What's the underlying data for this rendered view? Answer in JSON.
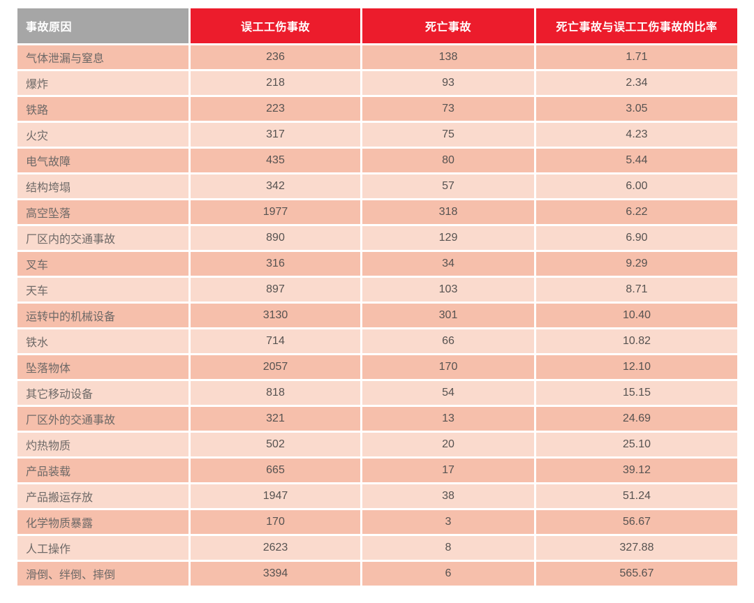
{
  "colors": {
    "gray_header": "#a6a6a6",
    "red_header": "#ec1c2c",
    "row_dark": "#f6bfab",
    "row_light": "#fadacd",
    "header_text": "#ffffff",
    "body_text": "#565250",
    "page_bg": "#ffffff"
  },
  "chart_data": {
    "type": "table",
    "columns": [
      "事故原因",
      "误工工伤事故",
      "死亡事故",
      "死亡事故与误工工伤事故的比率"
    ],
    "rows": [
      [
        "气体泄漏与窒息",
        "236",
        "138",
        "1.71"
      ],
      [
        "爆炸",
        "218",
        "93",
        "2.34"
      ],
      [
        "铁路",
        "223",
        "73",
        "3.05"
      ],
      [
        "火灾",
        "317",
        "75",
        "4.23"
      ],
      [
        "电气故障",
        "435",
        "80",
        "5.44"
      ],
      [
        "结构垮塌",
        "342",
        "57",
        "6.00"
      ],
      [
        "高空坠落",
        "1977",
        "318",
        "6.22"
      ],
      [
        "厂区内的交通事故",
        "890",
        "129",
        "6.90"
      ],
      [
        "叉车",
        "316",
        "34",
        "9.29"
      ],
      [
        "天车",
        "897",
        "103",
        "8.71"
      ],
      [
        "运转中的机械设备",
        "3130",
        "301",
        "10.40"
      ],
      [
        "铁水",
        "714",
        "66",
        "10.82"
      ],
      [
        "坠落物体",
        "2057",
        "170",
        "12.10"
      ],
      [
        "其它移动设备",
        "818",
        "54",
        "15.15"
      ],
      [
        "厂区外的交通事故",
        "321",
        "13",
        "24.69"
      ],
      [
        "灼热物质",
        "502",
        "20",
        "25.10"
      ],
      [
        "产品装载",
        "665",
        "17",
        "39.12"
      ],
      [
        "产品搬运存放",
        "1947",
        "38",
        "51.24"
      ],
      [
        "化学物质暴露",
        "170",
        "3",
        "56.67"
      ],
      [
        "人工操作",
        "2623",
        "8",
        "327.88"
      ],
      [
        "滑倒、绊倒、摔倒",
        "3394",
        "6",
        "565.67"
      ]
    ]
  }
}
